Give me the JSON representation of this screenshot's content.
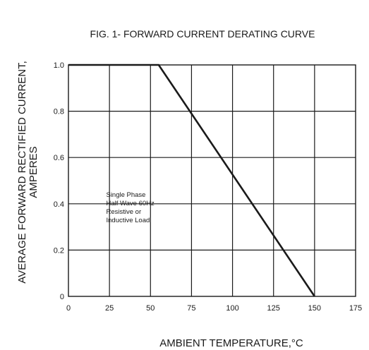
{
  "chart_data": {
    "type": "line",
    "title": "FIG. 1- FORWARD CURRENT DERATING CURVE",
    "xlabel": "AMBIENT TEMPERATURE,°C",
    "ylabel_lines": [
      "AVERAGE FORWARD RECTIFIED CURRENT,",
      "AMPERES"
    ],
    "xlim": [
      0,
      175
    ],
    "ylim": [
      0,
      1.0
    ],
    "x_ticks": [
      0,
      25,
      50,
      75,
      100,
      125,
      150,
      175
    ],
    "y_ticks": [
      0,
      0.2,
      0.4,
      0.6,
      0.8,
      1.0
    ],
    "x_tick_labels": [
      "0",
      "25",
      "50",
      "75",
      "100",
      "125",
      "150",
      "175"
    ],
    "y_tick_labels": [
      "0",
      "0.2",
      "0.4",
      "0.6",
      "0.8",
      "1.0"
    ],
    "grid": true,
    "series": [
      {
        "x": [
          0,
          55,
          150
        ],
        "y": [
          1.0,
          1.0,
          0.0
        ]
      }
    ],
    "annotation": {
      "lines": [
        "Single Phase",
        "Half Wave 60Hz",
        "Resistive or",
        "Inductive Load"
      ],
      "x": 23,
      "y": 0.43
    },
    "colors": {
      "line": "#1a1a1a",
      "grid": "#1a1a1a",
      "text": "#1a1a1a"
    }
  }
}
